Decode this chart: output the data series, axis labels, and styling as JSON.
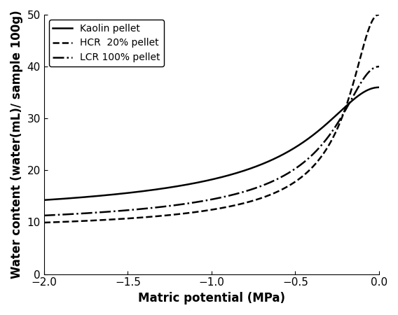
{
  "title": "",
  "xlabel": "Matric potential (MPa)",
  "ylabel": "Water content (water(mL)/ sample 100g)",
  "xlim": [
    -2.0,
    0.0
  ],
  "ylim": [
    0,
    50
  ],
  "xticks": [
    -2.0,
    -1.5,
    -1.0,
    -0.5,
    0.0
  ],
  "yticks": [
    0,
    10,
    20,
    30,
    40,
    50
  ],
  "series": [
    {
      "label": "Kaolin pellet",
      "linestyle": "solid",
      "linewidth": 1.8,
      "color": "#000000",
      "params": {
        "a": 9.9,
        "b": 1.55,
        "c": 0.0
      }
    },
    {
      "label": "HCR  20% pellet",
      "linestyle": "dashed",
      "linewidth": 1.8,
      "color": "#000000",
      "params": {
        "a": 8.0,
        "b": 2.8,
        "c": 0.0
      }
    },
    {
      "label": "LCR 100% pellet",
      "linestyle": "dashdot",
      "linewidth": 1.8,
      "color": "#000000",
      "params": {
        "a": 8.5,
        "b": 2.1,
        "c": 0.0
      }
    }
  ],
  "legend_loc": "upper left",
  "background_color": "#ffffff",
  "font_size": 12,
  "label_fontsize": 12,
  "tick_fontsize": 11
}
